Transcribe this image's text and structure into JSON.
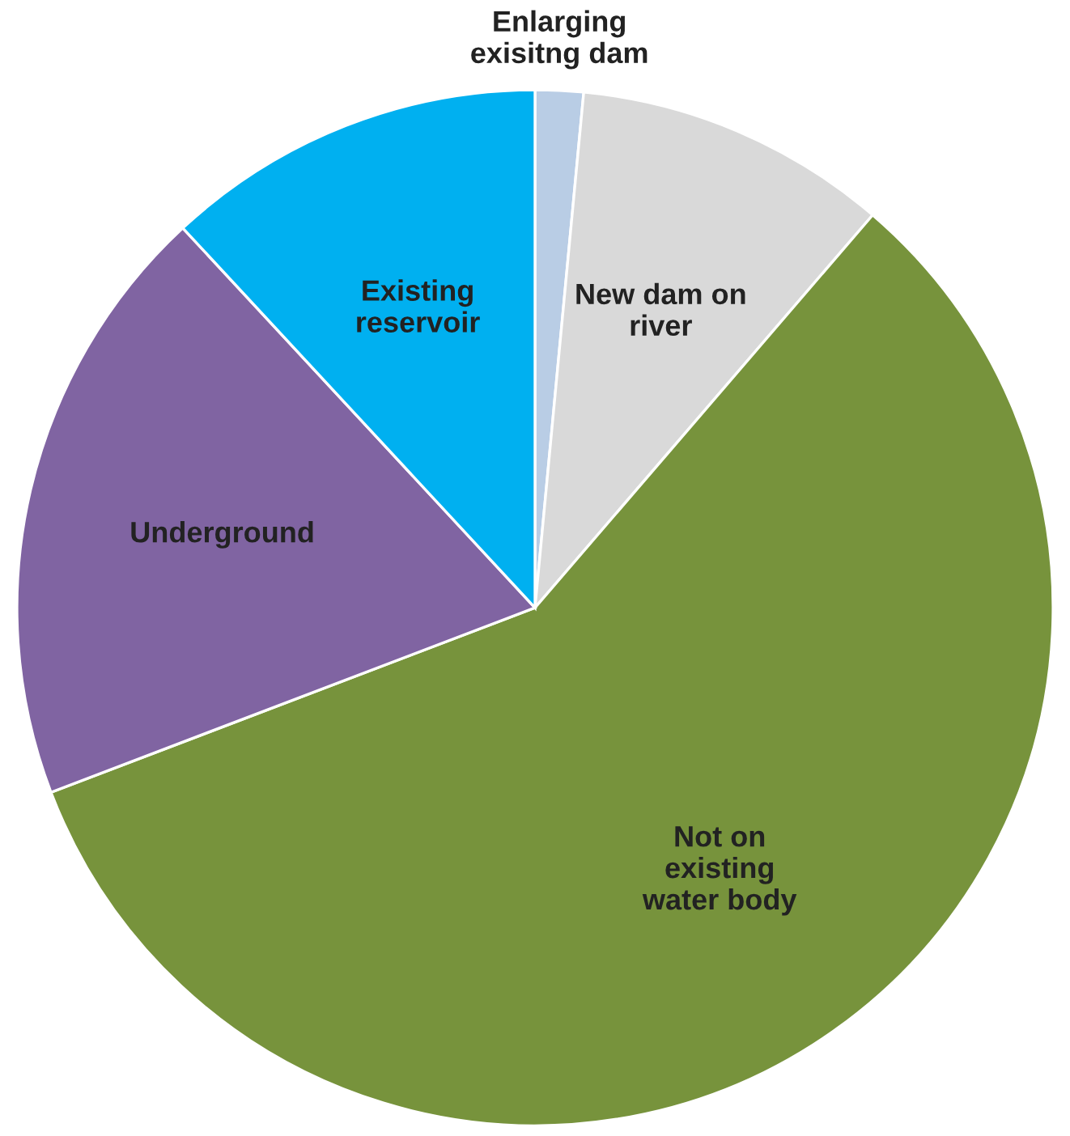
{
  "chart_data": {
    "type": "pie",
    "categories": [
      "Enlarging\nexisitng dam",
      "New dam on\nriver",
      "Not on\nexisting\nwater body",
      "Underground",
      "Existing\nreservoir"
    ],
    "values": [
      1.5,
      9.8,
      57.9,
      18.9,
      11.9
    ],
    "colors": [
      "#b9cde5",
      "#d9d9d9",
      "#77933c",
      "#8064a2",
      "#00b0f0"
    ]
  }
}
